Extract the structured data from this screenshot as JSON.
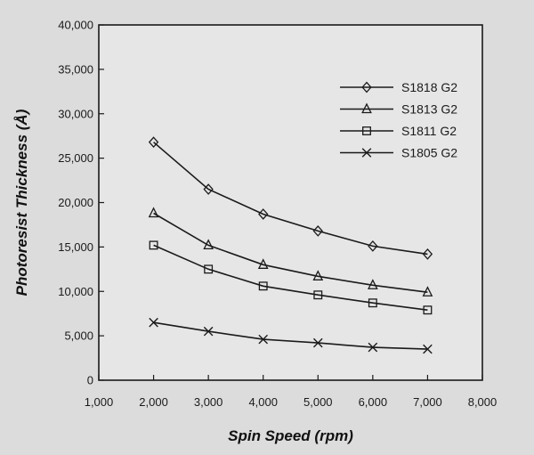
{
  "chart_data": {
    "type": "line",
    "title": "",
    "xlabel": "Spin Speed (rpm)",
    "ylabel": "Photoresist Thickness (Å)",
    "xlim": [
      1000,
      8000
    ],
    "ylim": [
      0,
      40000
    ],
    "x_ticks": [
      1000,
      2000,
      3000,
      4000,
      5000,
      6000,
      7000,
      8000
    ],
    "x_tick_labels": [
      "1,000",
      "2,000",
      "3,000",
      "4,000",
      "5,000",
      "6,000",
      "7,000",
      "8,000"
    ],
    "y_ticks": [
      0,
      5000,
      10000,
      15000,
      20000,
      25000,
      30000,
      35000,
      40000
    ],
    "y_tick_labels": [
      "0",
      "5,000",
      "10,000",
      "15,000",
      "20,000",
      "25,000",
      "30,000",
      "35,000",
      "40,000"
    ],
    "grid": false,
    "legend_position": "top-right",
    "x": [
      2000,
      3000,
      4000,
      5000,
      6000,
      7000
    ],
    "series": [
      {
        "name": "S1818 G2",
        "marker": "diamond",
        "values": [
          26800,
          21500,
          18700,
          16800,
          15100,
          14200
        ]
      },
      {
        "name": "S1813 G2",
        "marker": "triangle",
        "values": [
          18800,
          15200,
          13000,
          11700,
          10700,
          9900
        ]
      },
      {
        "name": "S1811 G2",
        "marker": "square",
        "values": [
          15200,
          12500,
          10600,
          9600,
          8700,
          7900
        ]
      },
      {
        "name": "S1805 G2",
        "marker": "x",
        "values": [
          6500,
          5500,
          4600,
          4200,
          3700,
          3500
        ]
      }
    ],
    "colors": {
      "background": "#dcdcdc",
      "plot_area": "#e6e6e6",
      "ink": "#1a1a1a"
    }
  }
}
